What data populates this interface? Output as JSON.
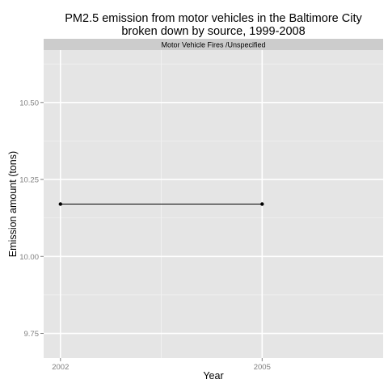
{
  "chart_data": {
    "type": "line",
    "title": "PM2.5 emission from motor vehicles in the Baltimore City\nbroken down by source, 1999-2008",
    "facet_label": "Motor Vehicle Fires /Unspecified",
    "xlabel": "Year",
    "ylabel": "Emission amount (tons)",
    "x": [
      2002,
      2005
    ],
    "series": [
      {
        "values": [
          10.17,
          10.17
        ]
      }
    ],
    "x_ticks": [
      2002,
      2005
    ],
    "x_tick_labels": [
      "2002",
      "2005"
    ],
    "xlim": [
      2001.75,
      2006.8
    ],
    "y_ticks": [
      9.75,
      10.0,
      10.25,
      10.5
    ],
    "y_tick_labels": [
      "9.75",
      "10.00",
      "10.25",
      "10.50"
    ],
    "ylim": [
      9.67,
      10.67
    ],
    "grid": true,
    "legend": "none",
    "colors": {
      "panel_bg": "#E5E5E5",
      "strip_bg": "#CCCCCC",
      "grid_major": "#FFFFFF",
      "grid_minor": "#F2F2F2",
      "line": "#000000",
      "tick_text": "#7F7F7F",
      "text": "#000000"
    }
  }
}
